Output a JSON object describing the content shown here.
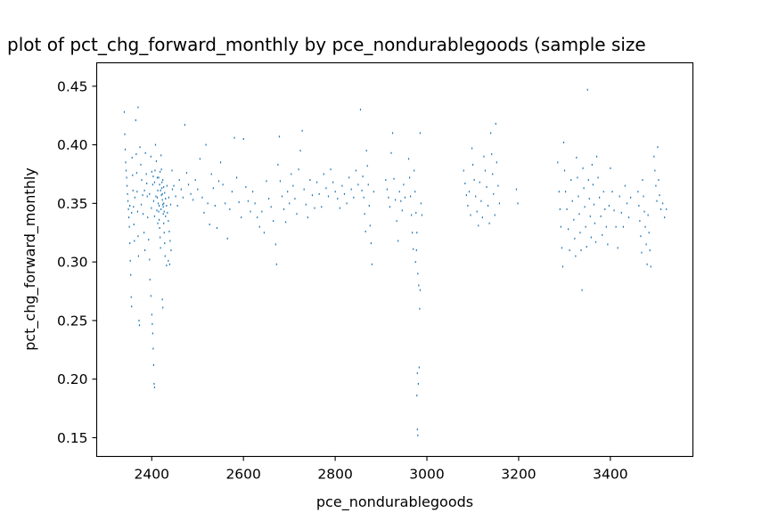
{
  "chart_data": {
    "type": "scatter",
    "title": "plot of pct_chg_forward_monthly by pce_nondurablegoods (sample size",
    "xlabel": "pce_nondurablegoods",
    "ylabel": "pct_chg_forward_monthly",
    "xlim": [
      2280,
      3580
    ],
    "ylim": [
      0.134,
      0.47
    ],
    "x_ticks": [
      2400,
      2600,
      2800,
      3000,
      3200,
      3400
    ],
    "y_ticks": [
      0.15,
      0.2,
      0.25,
      0.3,
      0.35,
      0.4,
      0.45
    ],
    "x_tick_labels": [
      "2400",
      "2600",
      "2800",
      "3000",
      "3200",
      "3400"
    ],
    "y_tick_labels": [
      "0.15",
      "0.20",
      "0.25",
      "0.30",
      "0.35",
      "0.40",
      "0.45"
    ],
    "grid": false,
    "marker": "pixel",
    "color": "#1f77b4",
    "points": [
      [
        2340,
        0.428
      ],
      [
        2341,
        0.409
      ],
      [
        2342,
        0.396
      ],
      [
        2343,
        0.385
      ],
      [
        2344,
        0.378
      ],
      [
        2345,
        0.372
      ],
      [
        2346,
        0.365
      ],
      [
        2347,
        0.358
      ],
      [
        2348,
        0.352
      ],
      [
        2349,
        0.345
      ],
      [
        2350,
        0.338
      ],
      [
        2351,
        0.33
      ],
      [
        2352,
        0.316
      ],
      [
        2353,
        0.301
      ],
      [
        2354,
        0.289
      ],
      [
        2355,
        0.27
      ],
      [
        2356,
        0.262
      ],
      [
        2357,
        0.389
      ],
      [
        2358,
        0.374
      ],
      [
        2359,
        0.361
      ],
      [
        2360,
        0.347
      ],
      [
        2361,
        0.332
      ],
      [
        2362,
        0.318
      ],
      [
        2365,
        0.421
      ],
      [
        2366,
        0.392
      ],
      [
        2367,
        0.376
      ],
      [
        2368,
        0.36
      ],
      [
        2369,
        0.343
      ],
      [
        2370,
        0.322
      ],
      [
        2371,
        0.305
      ],
      [
        2370,
        0.432
      ],
      [
        2372,
        0.25
      ],
      [
        2373,
        0.246
      ],
      [
        2374,
        0.398
      ],
      [
        2376,
        0.383
      ],
      [
        2378,
        0.37
      ],
      [
        2380,
        0.357
      ],
      [
        2381,
        0.341
      ],
      [
        2383,
        0.325
      ],
      [
        2385,
        0.31
      ],
      [
        2386,
        0.393
      ],
      [
        2388,
        0.375
      ],
      [
        2390,
        0.356
      ],
      [
        2391,
        0.338
      ],
      [
        2393,
        0.319
      ],
      [
        2395,
        0.302
      ],
      [
        2396,
        0.285
      ],
      [
        2398,
        0.271
      ],
      [
        2400,
        0.255
      ],
      [
        2401,
        0.247
      ],
      [
        2402,
        0.239
      ],
      [
        2403,
        0.226
      ],
      [
        2404,
        0.212
      ],
      [
        2405,
        0.196
      ],
      [
        2406,
        0.193
      ],
      [
        2398,
        0.39
      ],
      [
        2400,
        0.377
      ],
      [
        2402,
        0.366
      ],
      [
        2404,
        0.352
      ],
      [
        2406,
        0.339
      ],
      [
        2408,
        0.4
      ],
      [
        2410,
        0.386
      ],
      [
        2412,
        0.372
      ],
      [
        2413,
        0.361
      ],
      [
        2414,
        0.35
      ],
      [
        2415,
        0.343
      ],
      [
        2416,
        0.336
      ],
      [
        2417,
        0.329
      ],
      [
        2418,
        0.321
      ],
      [
        2419,
        0.312
      ],
      [
        2420,
        0.391
      ],
      [
        2421,
        0.379
      ],
      [
        2422,
        0.368
      ],
      [
        2423,
        0.358
      ],
      [
        2424,
        0.349
      ],
      [
        2425,
        0.341
      ],
      [
        2426,
        0.333
      ],
      [
        2427,
        0.325
      ],
      [
        2428,
        0.316
      ],
      [
        2429,
        0.305
      ],
      [
        2415,
        0.372
      ],
      [
        2417,
        0.366
      ],
      [
        2419,
        0.361
      ],
      [
        2421,
        0.357
      ],
      [
        2423,
        0.353
      ],
      [
        2425,
        0.347
      ],
      [
        2427,
        0.343
      ],
      [
        2412,
        0.355
      ],
      [
        2416,
        0.348
      ],
      [
        2420,
        0.345
      ],
      [
        2424,
        0.37
      ],
      [
        2426,
        0.364
      ],
      [
        2428,
        0.359
      ],
      [
        2430,
        0.354
      ],
      [
        2432,
        0.348
      ],
      [
        2434,
        0.342
      ],
      [
        2436,
        0.335
      ],
      [
        2438,
        0.326
      ],
      [
        2440,
        0.318
      ],
      [
        2442,
        0.31
      ],
      [
        2423,
        0.268
      ],
      [
        2424,
        0.261
      ],
      [
        2432,
        0.297
      ],
      [
        2436,
        0.301
      ],
      [
        2439,
        0.298
      ],
      [
        2444,
        0.378
      ],
      [
        2448,
        0.365
      ],
      [
        2452,
        0.356
      ],
      [
        2456,
        0.348
      ],
      [
        2460,
        0.37
      ],
      [
        2464,
        0.362
      ],
      [
        2468,
        0.355
      ],
      [
        2472,
        0.417
      ],
      [
        2476,
        0.376
      ],
      [
        2480,
        0.366
      ],
      [
        2485,
        0.358
      ],
      [
        2490,
        0.353
      ],
      [
        2495,
        0.37
      ],
      [
        2500,
        0.362
      ],
      [
        2505,
        0.388
      ],
      [
        2510,
        0.355
      ],
      [
        2514,
        0.342
      ],
      [
        2518,
        0.4
      ],
      [
        2522,
        0.35
      ],
      [
        2526,
        0.332
      ],
      [
        2530,
        0.375
      ],
      [
        2534,
        0.363
      ],
      [
        2538,
        0.348
      ],
      [
        2542,
        0.329
      ],
      [
        2546,
        0.369
      ],
      [
        2550,
        0.385
      ],
      [
        2555,
        0.366
      ],
      [
        2560,
        0.35
      ],
      [
        2565,
        0.32
      ],
      [
        2570,
        0.345
      ],
      [
        2575,
        0.36
      ],
      [
        2580,
        0.406
      ],
      [
        2585,
        0.372
      ],
      [
        2590,
        0.351
      ],
      [
        2595,
        0.338
      ],
      [
        2600,
        0.405
      ],
      [
        2605,
        0.364
      ],
      [
        2610,
        0.352
      ],
      [
        2615,
        0.343
      ],
      [
        2620,
        0.36
      ],
      [
        2625,
        0.35
      ],
      [
        2630,
        0.338
      ],
      [
        2635,
        0.33
      ],
      [
        2640,
        0.343
      ],
      [
        2645,
        0.325
      ],
      [
        2650,
        0.369
      ],
      [
        2655,
        0.354
      ],
      [
        2660,
        0.347
      ],
      [
        2665,
        0.335
      ],
      [
        2670,
        0.315
      ],
      [
        2672,
        0.298
      ],
      [
        2675,
        0.383
      ],
      [
        2678,
        0.407
      ],
      [
        2680,
        0.369
      ],
      [
        2684,
        0.356
      ],
      [
        2688,
        0.345
      ],
      [
        2692,
        0.334
      ],
      [
        2696,
        0.36
      ],
      [
        2700,
        0.35
      ],
      [
        2704,
        0.375
      ],
      [
        2708,
        0.365
      ],
      [
        2712,
        0.354
      ],
      [
        2716,
        0.341
      ],
      [
        2720,
        0.379
      ],
      [
        2724,
        0.395
      ],
      [
        2728,
        0.412
      ],
      [
        2732,
        0.362
      ],
      [
        2736,
        0.349
      ],
      [
        2740,
        0.338
      ],
      [
        2745,
        0.37
      ],
      [
        2750,
        0.357
      ],
      [
        2755,
        0.346
      ],
      [
        2760,
        0.368
      ],
      [
        2765,
        0.358
      ],
      [
        2770,
        0.347
      ],
      [
        2775,
        0.375
      ],
      [
        2780,
        0.363
      ],
      [
        2785,
        0.356
      ],
      [
        2790,
        0.379
      ],
      [
        2795,
        0.368
      ],
      [
        2800,
        0.36
      ],
      [
        2805,
        0.354
      ],
      [
        2810,
        0.346
      ],
      [
        2815,
        0.365
      ],
      [
        2820,
        0.358
      ],
      [
        2825,
        0.35
      ],
      [
        2830,
        0.372
      ],
      [
        2835,
        0.362
      ],
      [
        2840,
        0.355
      ],
      [
        2845,
        0.378
      ],
      [
        2850,
        0.366
      ],
      [
        2855,
        0.43
      ],
      [
        2858,
        0.361
      ],
      [
        2860,
        0.373
      ],
      [
        2862,
        0.355
      ],
      [
        2864,
        0.341
      ],
      [
        2866,
        0.326
      ],
      [
        2868,
        0.395
      ],
      [
        2870,
        0.382
      ],
      [
        2872,
        0.366
      ],
      [
        2874,
        0.348
      ],
      [
        2876,
        0.331
      ],
      [
        2878,
        0.316
      ],
      [
        2880,
        0.298
      ],
      [
        2884,
        0.36
      ],
      [
        2910,
        0.37
      ],
      [
        2913,
        0.362
      ],
      [
        2916,
        0.355
      ],
      [
        2919,
        0.347
      ],
      [
        2922,
        0.393
      ],
      [
        2925,
        0.41
      ],
      [
        2928,
        0.371
      ],
      [
        2931,
        0.353
      ],
      [
        2934,
        0.335
      ],
      [
        2937,
        0.318
      ],
      [
        2940,
        0.36
      ],
      [
        2943,
        0.352
      ],
      [
        2946,
        0.344
      ],
      [
        2949,
        0.366
      ],
      [
        2952,
        0.355
      ],
      [
        2960,
        0.388
      ],
      [
        2962,
        0.372
      ],
      [
        2964,
        0.356
      ],
      [
        2966,
        0.34
      ],
      [
        2968,
        0.325
      ],
      [
        2970,
        0.311
      ],
      [
        2972,
        0.378
      ],
      [
        2974,
        0.36
      ],
      [
        2976,
        0.342
      ],
      [
        2978,
        0.325
      ],
      [
        2980,
        0.29
      ],
      [
        2982,
        0.28
      ],
      [
        2984,
        0.26
      ],
      [
        2979,
        0.205
      ],
      [
        2981,
        0.196
      ],
      [
        2983,
        0.21
      ],
      [
        2978,
        0.186
      ],
      [
        2979,
        0.157
      ],
      [
        2980,
        0.152
      ],
      [
        2975,
        0.3
      ],
      [
        2977,
        0.31
      ],
      [
        2985,
        0.41
      ],
      [
        2987,
        0.35
      ],
      [
        2989,
        0.34
      ],
      [
        2985,
        0.276
      ],
      [
        3080,
        0.378
      ],
      [
        3083,
        0.367
      ],
      [
        3086,
        0.357
      ],
      [
        3089,
        0.348
      ],
      [
        3092,
        0.36
      ],
      [
        3095,
        0.34
      ],
      [
        3098,
        0.397
      ],
      [
        3100,
        0.383
      ],
      [
        3103,
        0.37
      ],
      [
        3106,
        0.356
      ],
      [
        3109,
        0.343
      ],
      [
        3112,
        0.331
      ],
      [
        3115,
        0.368
      ],
      [
        3118,
        0.352
      ],
      [
        3121,
        0.338
      ],
      [
        3124,
        0.39
      ],
      [
        3127,
        0.378
      ],
      [
        3130,
        0.364
      ],
      [
        3133,
        0.348
      ],
      [
        3136,
        0.333
      ],
      [
        3139,
        0.41
      ],
      [
        3141,
        0.392
      ],
      [
        3143,
        0.375
      ],
      [
        3145,
        0.358
      ],
      [
        3148,
        0.34
      ],
      [
        3150,
        0.418
      ],
      [
        3152,
        0.385
      ],
      [
        3155,
        0.365
      ],
      [
        3158,
        0.35
      ],
      [
        3195,
        0.362
      ],
      [
        3198,
        0.35
      ],
      [
        3285,
        0.385
      ],
      [
        3288,
        0.36
      ],
      [
        3290,
        0.345
      ],
      [
        3292,
        0.33
      ],
      [
        3294,
        0.312
      ],
      [
        3296,
        0.296
      ],
      [
        3298,
        0.402
      ],
      [
        3300,
        0.378
      ],
      [
        3302,
        0.36
      ],
      [
        3305,
        0.345
      ],
      [
        3308,
        0.328
      ],
      [
        3311,
        0.31
      ],
      [
        3314,
        0.37
      ],
      [
        3317,
        0.352
      ],
      [
        3320,
        0.336
      ],
      [
        3322,
        0.32
      ],
      [
        3324,
        0.305
      ],
      [
        3326,
        0.389
      ],
      [
        3328,
        0.372
      ],
      [
        3330,
        0.356
      ],
      [
        3332,
        0.341
      ],
      [
        3334,
        0.325
      ],
      [
        3336,
        0.31
      ],
      [
        3338,
        0.276
      ],
      [
        3340,
        0.38
      ],
      [
        3342,
        0.363
      ],
      [
        3344,
        0.347
      ],
      [
        3346,
        0.33
      ],
      [
        3348,
        0.313
      ],
      [
        3350,
        0.447
      ],
      [
        3352,
        0.37
      ],
      [
        3354,
        0.354
      ],
      [
        3356,
        0.339
      ],
      [
        3358,
        0.321
      ],
      [
        3360,
        0.383
      ],
      [
        3362,
        0.366
      ],
      [
        3364,
        0.349
      ],
      [
        3366,
        0.333
      ],
      [
        3368,
        0.317
      ],
      [
        3370,
        0.39
      ],
      [
        3373,
        0.372
      ],
      [
        3376,
        0.355
      ],
      [
        3379,
        0.339
      ],
      [
        3382,
        0.323
      ],
      [
        3385,
        0.36
      ],
      [
        3388,
        0.345
      ],
      [
        3391,
        0.33
      ],
      [
        3394,
        0.315
      ],
      [
        3397,
        0.348
      ],
      [
        3400,
        0.38
      ],
      [
        3404,
        0.36
      ],
      [
        3408,
        0.344
      ],
      [
        3412,
        0.33
      ],
      [
        3416,
        0.312
      ],
      [
        3420,
        0.356
      ],
      [
        3424,
        0.342
      ],
      [
        3428,
        0.33
      ],
      [
        3432,
        0.365
      ],
      [
        3436,
        0.35
      ],
      [
        3440,
        0.338
      ],
      [
        3444,
        0.355
      ],
      [
        3460,
        0.36
      ],
      [
        3462,
        0.348
      ],
      [
        3464,
        0.335
      ],
      [
        3466,
        0.322
      ],
      [
        3468,
        0.308
      ],
      [
        3470,
        0.37
      ],
      [
        3472,
        0.356
      ],
      [
        3474,
        0.343
      ],
      [
        3476,
        0.33
      ],
      [
        3478,
        0.315
      ],
      [
        3480,
        0.298
      ],
      [
        3482,
        0.34
      ],
      [
        3484,
        0.325
      ],
      [
        3486,
        0.31
      ],
      [
        3488,
        0.296
      ],
      [
        3495,
        0.39
      ],
      [
        3497,
        0.378
      ],
      [
        3499,
        0.365
      ],
      [
        3501,
        0.352
      ],
      [
        3503,
        0.398
      ],
      [
        3505,
        0.37
      ],
      [
        3507,
        0.357
      ],
      [
        3510,
        0.345
      ],
      [
        3514,
        0.35
      ],
      [
        3518,
        0.338
      ],
      [
        3522,
        0.345
      ],
      [
        2406,
        0.368
      ],
      [
        2409,
        0.356
      ],
      [
        2411,
        0.344
      ],
      [
        2413,
        0.333
      ],
      [
        2418,
        0.377
      ],
      [
        2422,
        0.363
      ],
      [
        2426,
        0.35
      ],
      [
        2430,
        0.339
      ],
      [
        2433,
        0.365
      ],
      [
        2437,
        0.355
      ],
      [
        2441,
        0.349
      ],
      [
        2445,
        0.362
      ],
      [
        2352,
        0.348
      ],
      [
        2356,
        0.342
      ],
      [
        2363,
        0.355
      ],
      [
        2377,
        0.349
      ],
      [
        2384,
        0.361
      ],
      [
        2389,
        0.367
      ],
      [
        2395,
        0.358
      ],
      [
        2399,
        0.346
      ],
      [
        2403,
        0.373
      ],
      [
        2407,
        0.378
      ]
    ]
  }
}
